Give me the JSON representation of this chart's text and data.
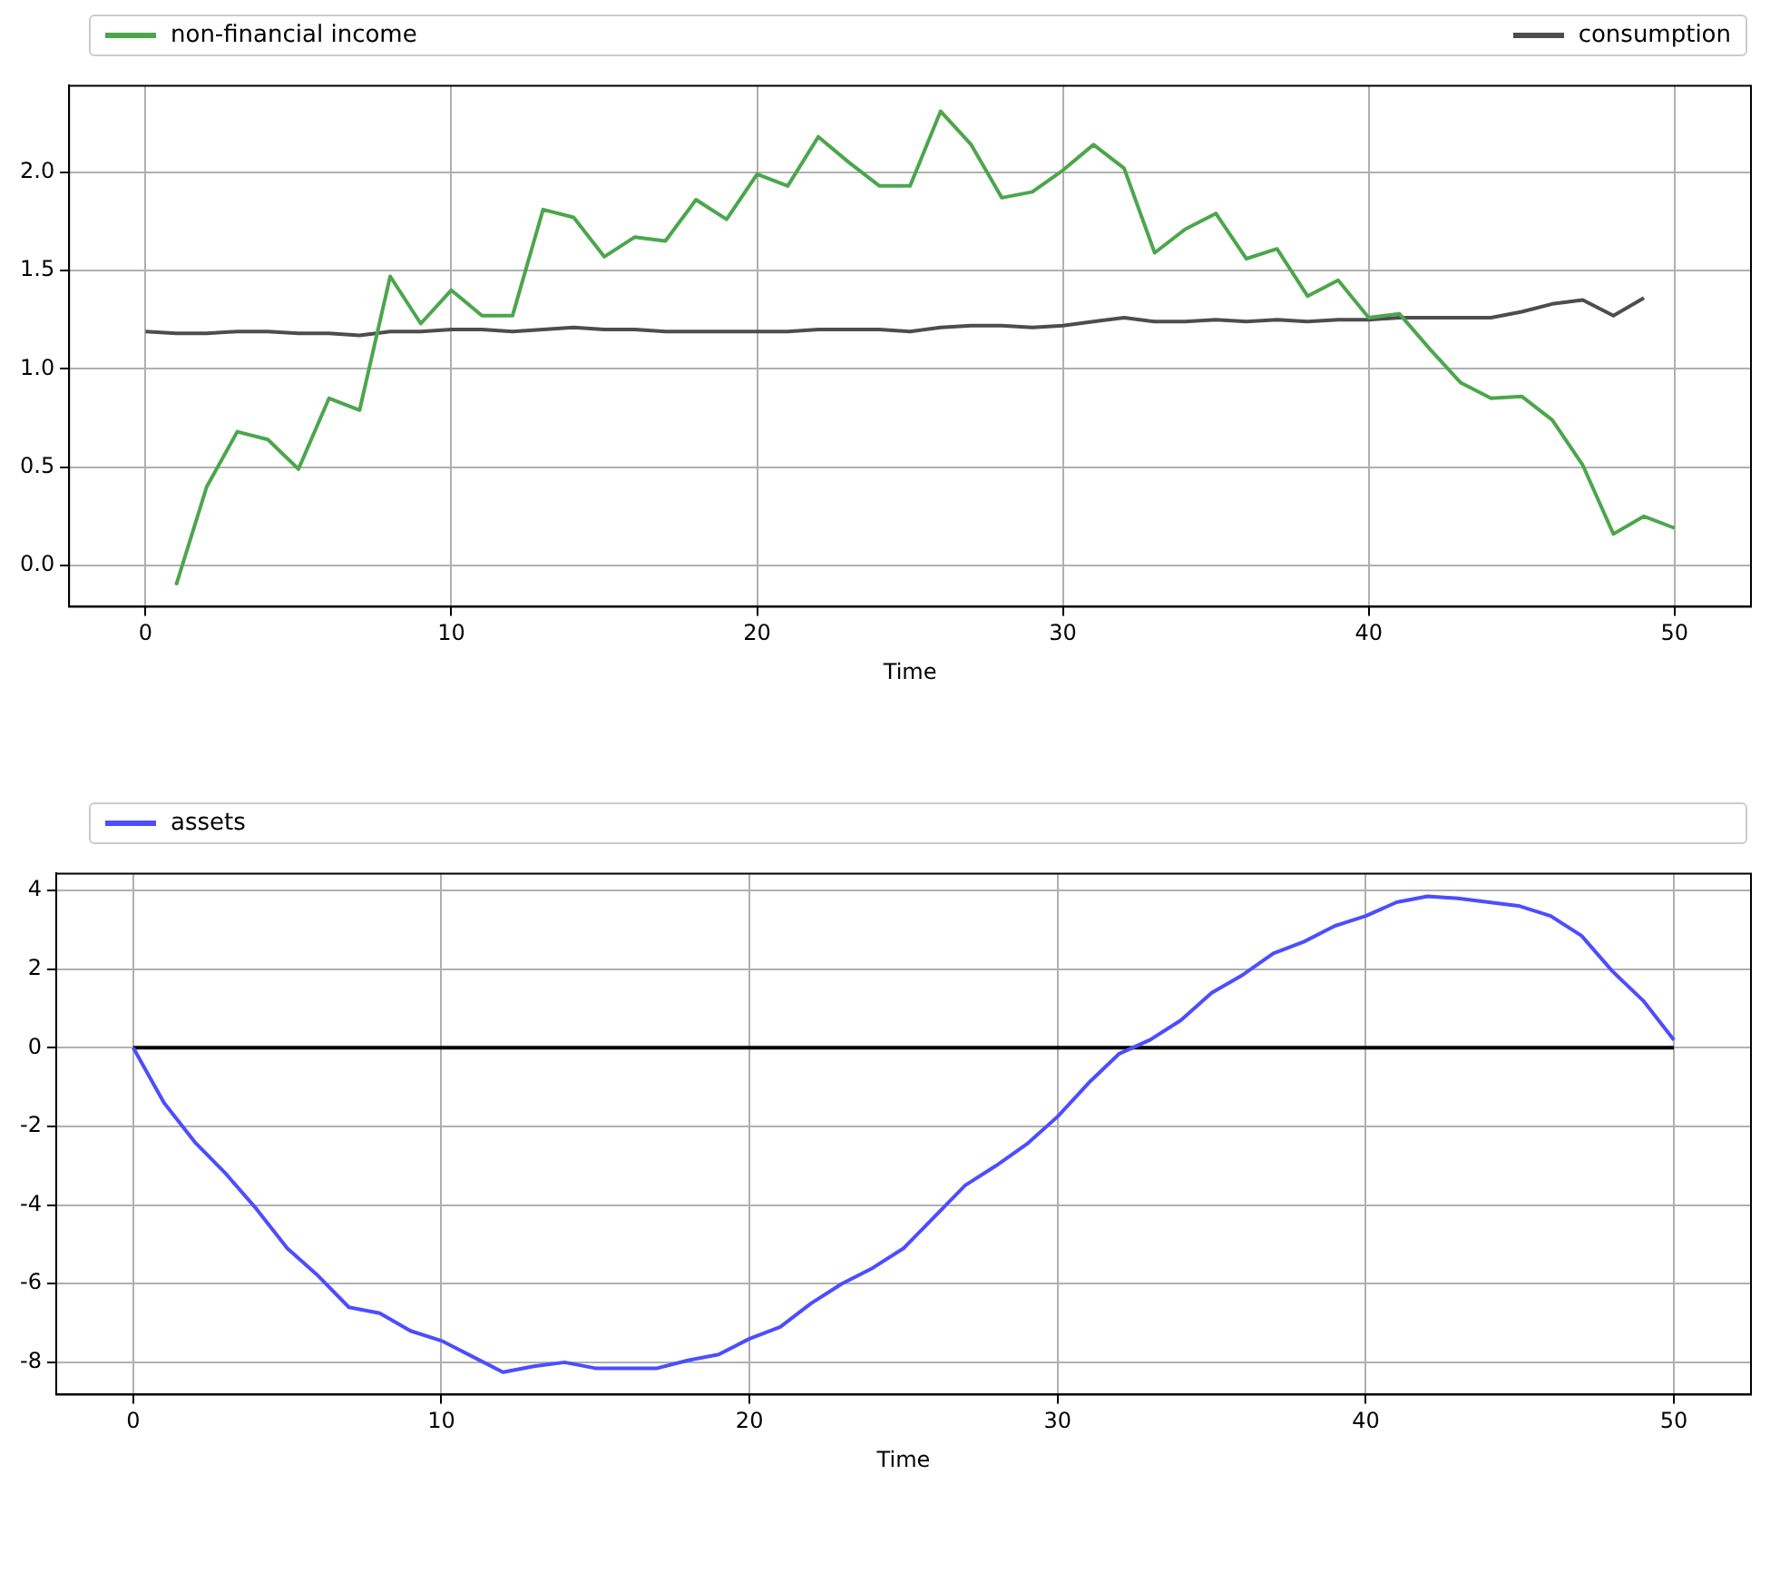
{
  "chart_data": [
    {
      "type": "line",
      "xlabel": "Time",
      "xlim": [
        -2.5,
        52.5
      ],
      "xticks": [
        0,
        10,
        20,
        30,
        40,
        50
      ],
      "ylim": [
        -0.21,
        2.44
      ],
      "yticks": [
        {
          "value": 0,
          "label": "0.0"
        },
        0.5,
        {
          "value": 1,
          "label": "1.0"
        },
        1.5,
        {
          "value": 2,
          "label": "2.0"
        }
      ],
      "grid": true,
      "legend": "top",
      "marker": "none",
      "line_style": "solid",
      "series": [
        {
          "name": "non-financial income",
          "color": "#4ca64c",
          "x": [
            1,
            2,
            3,
            4,
            5,
            6,
            7,
            8,
            9,
            10,
            11,
            12,
            13,
            14,
            15,
            16,
            17,
            18,
            19,
            20,
            21,
            22,
            23,
            24,
            25,
            26,
            27,
            28,
            29,
            30,
            31,
            32,
            33,
            34,
            35,
            36,
            37,
            38,
            39,
            40,
            41,
            42,
            43,
            44,
            45,
            46,
            47,
            48,
            49,
            50
          ],
          "values": [
            -0.1,
            0.4,
            0.68,
            0.64,
            0.49,
            0.85,
            0.79,
            1.47,
            1.23,
            1.4,
            1.27,
            1.27,
            1.81,
            1.77,
            1.57,
            1.67,
            1.65,
            1.86,
            1.76,
            1.99,
            1.93,
            2.18,
            2.05,
            1.93,
            1.93,
            2.31,
            2.14,
            1.87,
            1.9,
            2.01,
            2.14,
            2.02,
            1.59,
            1.71,
            1.79,
            1.56,
            1.61,
            1.37,
            1.45,
            1.26,
            1.28,
            1.1,
            0.93,
            0.85,
            0.86,
            0.74,
            0.51,
            0.16,
            0.25,
            0.19
          ]
        },
        {
          "name": "consumption",
          "color": "#4d4d4d",
          "x": [
            0,
            1,
            2,
            3,
            4,
            5,
            6,
            7,
            8,
            9,
            10,
            11,
            12,
            13,
            14,
            15,
            16,
            17,
            18,
            19,
            20,
            21,
            22,
            23,
            24,
            25,
            26,
            27,
            28,
            29,
            30,
            31,
            32,
            33,
            34,
            35,
            36,
            37,
            38,
            39,
            40,
            41,
            42,
            43,
            44,
            45,
            46,
            47,
            48,
            49
          ],
          "values": [
            1.19,
            1.18,
            1.18,
            1.19,
            1.19,
            1.18,
            1.18,
            1.17,
            1.19,
            1.19,
            1.2,
            1.2,
            1.19,
            1.2,
            1.21,
            1.2,
            1.2,
            1.19,
            1.19,
            1.19,
            1.19,
            1.19,
            1.2,
            1.2,
            1.2,
            1.19,
            1.21,
            1.22,
            1.22,
            1.21,
            1.22,
            1.24,
            1.26,
            1.24,
            1.24,
            1.25,
            1.24,
            1.25,
            1.24,
            1.25,
            1.25,
            1.26,
            1.26,
            1.26,
            1.26,
            1.29,
            1.33,
            1.35,
            1.27,
            1.36
          ]
        }
      ]
    },
    {
      "type": "line",
      "xlabel": "Time",
      "xlim": [
        -2.5,
        52.5
      ],
      "xticks": [
        0,
        10,
        20,
        30,
        40,
        50
      ],
      "ylim": [
        -8.82,
        4.43
      ],
      "yticks": [
        -8,
        -6,
        -4,
        -2,
        0,
        2,
        4
      ],
      "grid": true,
      "legend": "top",
      "marker": "none",
      "line_style": "solid",
      "series": [
        {
          "name": "assets",
          "color": "#4d4dff",
          "x": [
            0,
            1,
            2,
            3,
            4,
            5,
            6,
            7,
            8,
            9,
            10,
            11,
            12,
            13,
            14,
            15,
            16,
            17,
            18,
            19,
            20,
            21,
            22,
            23,
            24,
            25,
            26,
            27,
            28,
            29,
            30,
            31,
            32,
            33,
            34,
            35,
            36,
            37,
            38,
            39,
            40,
            41,
            42,
            43,
            44,
            45,
            46,
            47,
            48,
            49,
            50
          ],
          "values": [
            0,
            -1.4,
            -2.4,
            -3.2,
            -4.1,
            -5.1,
            -5.8,
            -6.6,
            -6.75,
            -7.2,
            -7.45,
            -7.85,
            -8.25,
            -8.1,
            -8.0,
            -8.15,
            -8.15,
            -8.15,
            -7.95,
            -7.8,
            -7.4,
            -7.1,
            -6.5,
            -6.0,
            -5.6,
            -5.1,
            -4.3,
            -3.5,
            -3.0,
            -2.45,
            -1.75,
            -0.9,
            -0.15,
            0.2,
            0.7,
            1.4,
            1.85,
            2.4,
            2.7,
            3.1,
            3.35,
            3.7,
            3.85,
            3.8,
            3.7,
            3.6,
            3.35,
            2.85,
            1.95,
            1.2,
            0.2
          ]
        },
        {
          "color": "#000000",
          "x": [
            0,
            50
          ],
          "values": [
            0,
            0
          ]
        }
      ]
    }
  ]
}
